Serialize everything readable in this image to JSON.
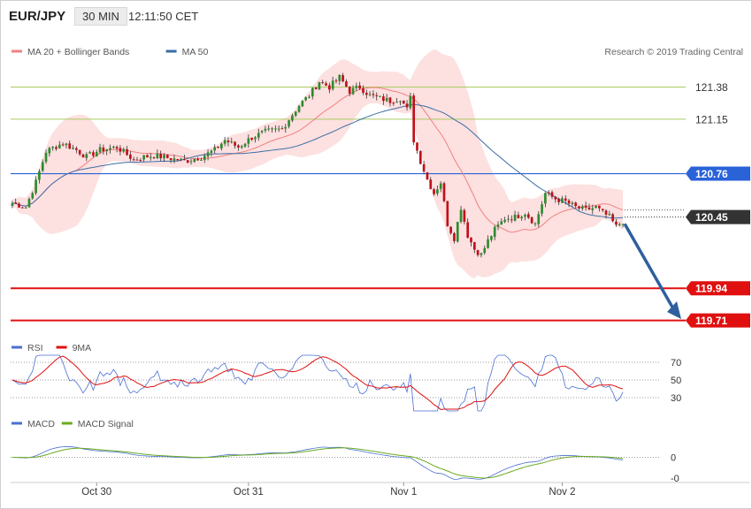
{
  "header": {
    "symbol": "EUR/JPY",
    "timeframe": "30 MIN",
    "time": "12:11:50 CET"
  },
  "legend_main": [
    {
      "label": "MA 20 + Bollinger Bands",
      "color": "#f08080"
    },
    {
      "label": "MA 50",
      "color": "#3a6ea5"
    }
  ],
  "copyright": "Research © 2019 Trading Central",
  "legend_rsi": [
    {
      "label": "RSI",
      "color": "#4a6fd1"
    },
    {
      "label": "9MA",
      "color": "#e01010"
    }
  ],
  "legend_macd": [
    {
      "label": "MACD",
      "color": "#4a6fd1"
    },
    {
      "label": "MACD Signal",
      "color": "#6aaa20"
    }
  ],
  "chart_data": {
    "type": "candlestick",
    "ylim": [
      119.6,
      121.75
    ],
    "levels": [
      {
        "value": 121.38,
        "label": "121.38",
        "role": "resistance",
        "color": "#a8cc60"
      },
      {
        "value": 121.15,
        "label": "121.15",
        "role": "resistance",
        "color": "#a8cc60"
      },
      {
        "value": 120.76,
        "label": "120.76",
        "role": "pivot",
        "color": "#2a62d8"
      },
      {
        "value": 120.45,
        "label": "120.45",
        "role": "last price",
        "color": "#333333"
      },
      {
        "value": 119.94,
        "label": "119.94",
        "role": "support",
        "color": "#e01010"
      },
      {
        "value": 119.71,
        "label": "119.71",
        "role": "support",
        "color": "#e01010"
      }
    ],
    "x_ticks": [
      "Oct 30",
      "Oct 31",
      "Nov 1",
      "Nov 2"
    ],
    "rsi": {
      "ticks": [
        70,
        50,
        30
      ]
    },
    "macd": {
      "ticks": [
        "0",
        "-0"
      ]
    },
    "price_path": [
      [
        0,
        120.55
      ],
      [
        4,
        120.52
      ],
      [
        7,
        120.7
      ],
      [
        10,
        120.92
      ],
      [
        15,
        120.98
      ],
      [
        19,
        120.93
      ],
      [
        22,
        120.88
      ],
      [
        26,
        120.93
      ],
      [
        31,
        120.95
      ],
      [
        36,
        120.86
      ],
      [
        39,
        120.88
      ],
      [
        42,
        120.89
      ],
      [
        47,
        120.87
      ],
      [
        51,
        120.85
      ],
      [
        56,
        120.88
      ],
      [
        60,
        120.93
      ],
      [
        63,
        121.0
      ],
      [
        67,
        120.95
      ],
      [
        71,
        121.02
      ],
      [
        75,
        121.06
      ],
      [
        80,
        121.08
      ],
      [
        82,
        121.15
      ],
      [
        85,
        121.25
      ],
      [
        88,
        121.32
      ],
      [
        91,
        121.42
      ],
      [
        94,
        121.38
      ],
      [
        97,
        121.45
      ],
      [
        100,
        121.35
      ],
      [
        103,
        121.38
      ],
      [
        106,
        121.32
      ],
      [
        109,
        121.3
      ],
      [
        112,
        121.28
      ],
      [
        115,
        121.3
      ],
      [
        117,
        121.22
      ],
      [
        118,
        121.3
      ],
      [
        119,
        121.0
      ],
      [
        121,
        120.85
      ],
      [
        123,
        120.72
      ],
      [
        125,
        120.62
      ],
      [
        127,
        120.7
      ],
      [
        129,
        120.4
      ],
      [
        131,
        120.3
      ],
      [
        133,
        120.52
      ],
      [
        135,
        120.32
      ],
      [
        137,
        120.22
      ],
      [
        139,
        120.18
      ],
      [
        141,
        120.28
      ],
      [
        143,
        120.36
      ],
      [
        146,
        120.44
      ],
      [
        149,
        120.45
      ],
      [
        152,
        120.48
      ],
      [
        155,
        120.4
      ],
      [
        158,
        120.62
      ],
      [
        161,
        120.58
      ],
      [
        164,
        120.56
      ],
      [
        167,
        120.52
      ],
      [
        170,
        120.5
      ],
      [
        173,
        120.52
      ],
      [
        175,
        120.48
      ],
      [
        177,
        120.45
      ],
      [
        179,
        120.38
      ],
      [
        181,
        120.42
      ]
    ]
  }
}
